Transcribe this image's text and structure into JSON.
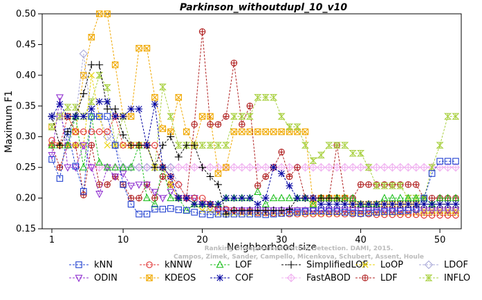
{
  "chart_data": {
    "type": "line",
    "title": "Parkinson_withoutdupl_10_v10",
    "xlabel": "Neighborhood size",
    "ylabel": "Maximum F1",
    "xlim": [
      1,
      52
    ],
    "ylim": [
      0.15,
      0.5
    ],
    "x_ticks": [
      1,
      10,
      20,
      30,
      40,
      50
    ],
    "y_ticks": [
      "0.15",
      "0.20",
      "0.25",
      "0.30",
      "0.35",
      "0.40",
      "0.45",
      "0.50"
    ],
    "legend_position": "bottom",
    "watermark": [
      "Ranking Unsupervised Outlier Detection. DAMI, 2015.",
      "Campos, Zimek, Sander, Campello, Micenkova, Schubert, Assent, Houle"
    ],
    "x": [
      1,
      2,
      3,
      4,
      5,
      6,
      7,
      8,
      9,
      10,
      11,
      12,
      13,
      14,
      15,
      16,
      17,
      18,
      19,
      20,
      21,
      22,
      23,
      24,
      25,
      26,
      27,
      28,
      29,
      30,
      31,
      32,
      33,
      34,
      35,
      36,
      37,
      38,
      39,
      40,
      41,
      42,
      43,
      44,
      45,
      46,
      47,
      48,
      49,
      50,
      51,
      52
    ],
    "series": [
      {
        "name": "kNN",
        "color": "#1f3fd0",
        "marker": "square",
        "values": [
          0.263,
          0.232,
          0.308,
          0.252,
          0.211,
          0.333,
          0.333,
          0.333,
          0.286,
          0.222,
          0.19,
          0.174,
          0.174,
          0.182,
          0.182,
          0.183,
          0.181,
          0.18,
          0.177,
          0.174,
          0.173,
          0.174,
          0.174,
          0.174,
          0.174,
          0.174,
          0.174,
          0.173,
          0.174,
          0.175,
          0.176,
          0.177,
          0.178,
          0.179,
          0.179,
          0.178,
          0.178,
          0.177,
          0.176,
          0.175,
          0.176,
          0.177,
          0.178,
          0.178,
          0.179,
          0.18,
          0.182,
          0.2,
          0.24,
          0.26,
          0.26,
          0.26
        ]
      },
      {
        "name": "kNNW",
        "color": "#e03030",
        "marker": "circle",
        "values": [
          0.294,
          0.286,
          0.333,
          0.308,
          0.308,
          0.308,
          0.308,
          0.308,
          0.333,
          0.286,
          0.286,
          0.286,
          0.286,
          0.286,
          0.25,
          0.235,
          0.222,
          0.2,
          0.2,
          0.2,
          0.19,
          0.182,
          0.182,
          0.18,
          0.178,
          0.178,
          0.176,
          0.176,
          0.175,
          0.175,
          0.174,
          0.174,
          0.174,
          0.174,
          0.174,
          0.174,
          0.174,
          0.174,
          0.174,
          0.174,
          0.174,
          0.173,
          0.173,
          0.173,
          0.173,
          0.173,
          0.173,
          0.172,
          0.172,
          0.172,
          0.172,
          0.172
        ]
      },
      {
        "name": "LOF",
        "color": "#20c020",
        "marker": "triangle-up",
        "values": [
          0.286,
          0.286,
          0.286,
          0.333,
          0.25,
          0.333,
          0.258,
          0.25,
          0.25,
          0.25,
          0.25,
          0.286,
          0.2,
          0.19,
          0.25,
          0.2,
          0.2,
          0.18,
          0.19,
          0.19,
          0.19,
          0.19,
          0.2,
          0.2,
          0.2,
          0.2,
          0.21,
          0.19,
          0.2,
          0.2,
          0.2,
          0.2,
          0.2,
          0.19,
          0.2,
          0.2,
          0.2,
          0.2,
          0.2,
          0.19,
          0.19,
          0.19,
          0.2,
          0.2,
          0.2,
          0.2,
          0.2,
          0.2,
          0.19,
          0.2,
          0.2,
          0.2
        ]
      },
      {
        "name": "SimplifiedLOF",
        "color": "#000000",
        "marker": "plus",
        "values": [
          0.333,
          0.286,
          0.308,
          0.333,
          0.37,
          0.417,
          0.417,
          0.345,
          0.345,
          0.303,
          0.286,
          0.286,
          0.286,
          0.25,
          0.286,
          0.3,
          0.267,
          0.286,
          0.286,
          0.25,
          0.235,
          0.222,
          0.174,
          0.18,
          0.18,
          0.18,
          0.18,
          0.18,
          0.18,
          0.18,
          0.182,
          0.2,
          0.2,
          0.2,
          0.2,
          0.2,
          0.2,
          0.19,
          0.19,
          0.19,
          0.19,
          0.19,
          0.19,
          0.19,
          0.19,
          0.19,
          0.19,
          0.19,
          0.19,
          0.19,
          0.19,
          0.19
        ]
      },
      {
        "name": "LoOP",
        "color": "#e8d000",
        "marker": "x",
        "values": [
          0.286,
          0.286,
          0.286,
          0.286,
          0.286,
          0.4,
          0.333,
          0.286,
          0.286,
          0.286,
          0.286,
          0.286,
          0.286,
          0.25,
          0.25,
          0.222,
          0.2,
          0.2,
          0.19,
          0.18,
          0.18,
          0.175,
          0.175,
          0.175,
          0.175,
          0.175,
          0.175,
          0.175,
          0.175,
          0.175,
          0.175,
          0.175,
          0.175,
          0.175,
          0.175,
          0.175,
          0.175,
          0.175,
          0.175,
          0.175,
          0.175,
          0.175,
          0.175,
          0.175,
          0.175,
          0.175,
          0.175,
          0.175,
          0.175,
          0.175,
          0.175,
          0.175
        ]
      },
      {
        "name": "LDOF",
        "color": "#a8a8d8",
        "marker": "diamond",
        "values": [
          0.333,
          0.333,
          0.3,
          0.333,
          0.435,
          0.333,
          0.333,
          0.3,
          0.286,
          0.25,
          0.25,
          0.25,
          0.25,
          0.25,
          0.25,
          0.25,
          0.222,
          0.2,
          0.2,
          0.19,
          0.18,
          0.18,
          0.18,
          0.18,
          0.18,
          0.18,
          0.18,
          0.18,
          0.18,
          0.18,
          0.18,
          0.18,
          0.18,
          0.18,
          0.18,
          0.18,
          0.18,
          0.18,
          0.18,
          0.18,
          0.18,
          0.18,
          0.18,
          0.18,
          0.18,
          0.18,
          0.18,
          0.18,
          0.18,
          0.18,
          0.18,
          0.18
        ]
      },
      {
        "name": "ODIN",
        "color": "#9030d0",
        "marker": "triangle-down",
        "values": [
          0.27,
          0.364,
          0.25,
          0.25,
          0.286,
          0.25,
          0.207,
          0.25,
          0.235,
          0.24,
          0.22,
          0.222,
          0.222,
          0.21,
          0.2,
          0.21,
          0.2,
          0.2,
          0.2,
          0.19,
          0.19,
          0.18,
          0.18,
          0.18,
          0.18,
          0.18,
          0.18,
          0.18,
          0.18,
          0.18,
          0.18,
          0.18,
          0.18,
          0.18,
          0.18,
          0.18,
          0.18,
          0.18,
          0.18,
          0.18,
          0.18,
          0.18,
          0.18,
          0.18,
          0.18,
          0.18,
          0.18,
          0.18,
          0.18,
          0.18,
          0.18,
          0.18
        ]
      },
      {
        "name": "KDEOS",
        "color": "#f0a800",
        "marker": "square-x",
        "values": [
          0.316,
          0.333,
          0.333,
          0.308,
          0.4,
          0.462,
          0.5,
          0.5,
          0.417,
          0.333,
          0.333,
          0.444,
          0.444,
          0.364,
          0.313,
          0.308,
          0.364,
          0.308,
          0.286,
          0.333,
          0.333,
          0.24,
          0.25,
          0.308,
          0.308,
          0.308,
          0.308,
          0.308,
          0.308,
          0.308,
          0.308,
          0.308,
          0.308,
          0.19,
          0.2,
          0.2,
          0.2,
          0.2,
          0.19,
          0.19,
          0.19,
          0.19,
          0.19,
          0.19,
          0.19,
          0.19,
          0.19,
          0.18,
          0.18,
          0.18,
          0.18,
          0.18
        ]
      },
      {
        "name": "COF",
        "color": "#0000a0",
        "marker": "asterisk",
        "values": [
          0.333,
          0.353,
          0.333,
          0.333,
          0.333,
          0.345,
          0.357,
          0.357,
          0.333,
          0.333,
          0.345,
          0.345,
          0.286,
          0.353,
          0.25,
          0.235,
          0.2,
          0.2,
          0.19,
          0.19,
          0.19,
          0.19,
          0.2,
          0.2,
          0.2,
          0.2,
          0.19,
          0.2,
          0.25,
          0.24,
          0.22,
          0.2,
          0.2,
          0.2,
          0.19,
          0.19,
          0.19,
          0.19,
          0.19,
          0.19,
          0.19,
          0.19,
          0.19,
          0.19,
          0.19,
          0.19,
          0.19,
          0.19,
          0.19,
          0.19,
          0.19,
          0.19
        ]
      },
      {
        "name": "FastABOD",
        "color": "#f0b0f0",
        "marker": "diamond-plus",
        "values": [
          0.286,
          0.286,
          0.286,
          0.286,
          0.286,
          0.25,
          0.25,
          0.25,
          0.25,
          0.25,
          0.25,
          0.25,
          0.25,
          0.25,
          0.25,
          0.25,
          0.25,
          0.25,
          0.25,
          0.25,
          0.25,
          0.25,
          0.25,
          0.25,
          0.25,
          0.25,
          0.25,
          0.25,
          0.25,
          0.25,
          0.25,
          0.25,
          0.25,
          0.25,
          0.25,
          0.25,
          0.25,
          0.25,
          0.25,
          0.25,
          0.25,
          0.25,
          0.25,
          0.25,
          0.25,
          0.25,
          0.25,
          0.25,
          0.25,
          0.25,
          0.25,
          0.25
        ]
      },
      {
        "name": "LDF",
        "color": "#b02020",
        "marker": "circle-plus",
        "values": [
          0.286,
          0.25,
          0.286,
          0.286,
          0.205,
          0.286,
          0.222,
          0.222,
          0.235,
          0.222,
          0.2,
          0.2,
          0.222,
          0.2,
          0.235,
          0.222,
          0.2,
          0.2,
          0.32,
          0.471,
          0.32,
          0.32,
          0.333,
          0.42,
          0.32,
          0.35,
          0.22,
          0.235,
          0.25,
          0.275,
          0.235,
          0.25,
          0.2,
          0.2,
          0.2,
          0.2,
          0.286,
          0.2,
          0.2,
          0.222,
          0.222,
          0.222,
          0.222,
          0.222,
          0.222,
          0.222,
          0.222,
          0.2,
          0.2,
          0.2,
          0.2,
          0.2
        ]
      },
      {
        "name": "INFLO",
        "color": "#a8d040",
        "marker": "hourglass",
        "values": [
          0.316,
          0.333,
          0.348,
          0.348,
          0.333,
          0.357,
          0.4,
          0.38,
          0.286,
          0.333,
          0.286,
          0.286,
          0.286,
          0.25,
          0.381,
          0.333,
          0.286,
          0.286,
          0.286,
          0.286,
          0.286,
          0.286,
          0.286,
          0.333,
          0.333,
          0.333,
          0.364,
          0.364,
          0.364,
          0.333,
          0.316,
          0.316,
          0.286,
          0.261,
          0.27,
          0.286,
          0.286,
          0.286,
          0.273,
          0.273,
          0.25,
          0.22,
          0.22,
          0.22,
          0.22,
          0.2,
          0.2,
          0.2,
          0.25,
          0.286,
          0.333,
          0.333
        ]
      }
    ]
  }
}
